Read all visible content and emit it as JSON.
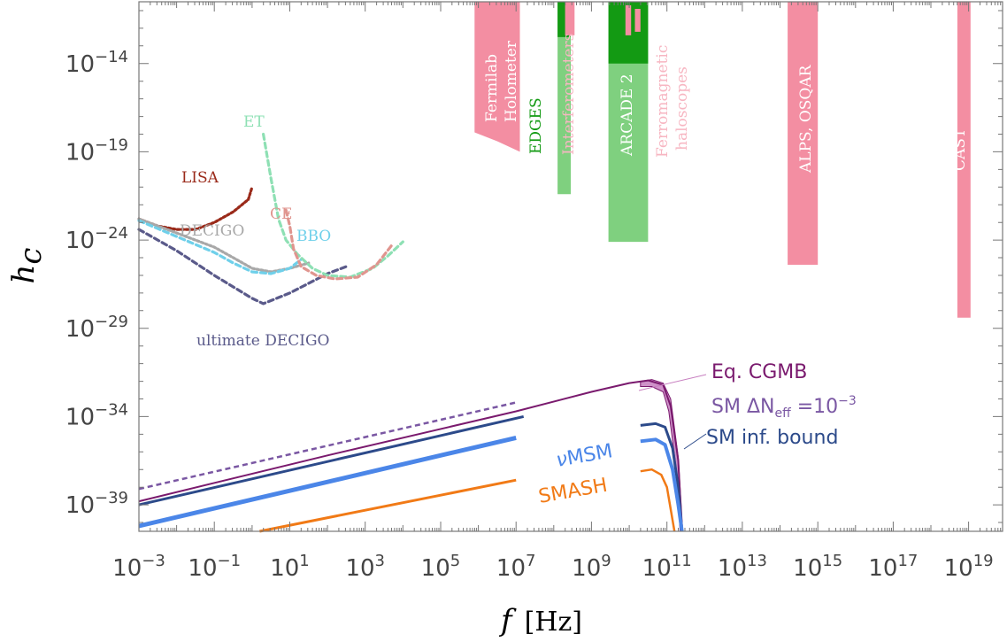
{
  "chart_data": {
    "type": "line",
    "x_scale": "log",
    "y_scale": "log",
    "xlim_exp": [
      -3,
      19.9
    ],
    "ylim_exp": [
      -40.5,
      -10.5
    ],
    "x_tick_exponents": [
      -3,
      -1,
      1,
      3,
      5,
      7,
      9,
      11,
      13,
      15,
      17,
      19
    ],
    "y_tick_exponents": [
      -14,
      -19,
      -24,
      -29,
      -34,
      -39
    ],
    "xlabel": {
      "var": "f",
      "unit": "[Hz]"
    },
    "ylabel": {
      "var": "h",
      "sub": "c"
    },
    "tick_base": "10",
    "tick_minus": "−",
    "grid": false,
    "detector_curves": [
      {
        "name": "LISA",
        "color": "#9a2a1a",
        "dash": "dotted",
        "points": [
          [
            -3,
            -22.8
          ],
          [
            -2.5,
            -23.2
          ],
          [
            -2,
            -23.4
          ],
          [
            -1.5,
            -23.4
          ],
          [
            -1,
            -23.0
          ],
          [
            -0.5,
            -22.4
          ],
          [
            -0.1,
            -21.7
          ],
          [
            0,
            -21.0
          ]
        ]
      },
      {
        "name": "DECIGO",
        "color": "#a8a8a8",
        "dash": "dotted",
        "points": [
          [
            -3,
            -22.8
          ],
          [
            -2,
            -23.6
          ],
          [
            -1,
            -24.4
          ],
          [
            -0.5,
            -25.0
          ],
          [
            0,
            -25.6
          ],
          [
            0.5,
            -25.8
          ],
          [
            1,
            -25.6
          ],
          [
            1.5,
            -25.3
          ]
        ]
      },
      {
        "name": "ultimate DECIGO",
        "color": "#5a5a8a",
        "dash": "dashed",
        "points": [
          [
            -3,
            -23.4
          ],
          [
            -2,
            -24.6
          ],
          [
            -1,
            -26.0
          ],
          [
            0,
            -27.3
          ],
          [
            0.3,
            -27.6
          ],
          [
            1,
            -27.0
          ],
          [
            2,
            -25.9
          ],
          [
            2.5,
            -25.5
          ]
        ]
      },
      {
        "name": "BBO",
        "color": "#6fd0ea",
        "dash": "dashed",
        "points": [
          [
            -3,
            -22.9
          ],
          [
            -2,
            -23.8
          ],
          [
            -1,
            -24.7
          ],
          [
            -0.5,
            -25.3
          ],
          [
            0,
            -25.8
          ],
          [
            0.5,
            -25.9
          ],
          [
            1,
            -25.6
          ],
          [
            1.3,
            -25.1
          ]
        ]
      },
      {
        "name": "ET",
        "color": "#8ee0b4",
        "dash": "dashed",
        "points": [
          [
            0.3,
            -18.0
          ],
          [
            0.5,
            -20.5
          ],
          [
            0.7,
            -22.8
          ],
          [
            0.9,
            -24.0
          ],
          [
            1.2,
            -24.8
          ],
          [
            1.6,
            -25.6
          ],
          [
            2.0,
            -26.0
          ],
          [
            2.6,
            -26.1
          ],
          [
            3.2,
            -25.6
          ],
          [
            3.6,
            -24.9
          ],
          [
            4.0,
            -24.1
          ]
        ]
      },
      {
        "name": "CE",
        "color": "#e0958f",
        "dash": "dashed",
        "points": [
          [
            0.9,
            -22.3
          ],
          [
            1.0,
            -23.2
          ],
          [
            1.1,
            -24.5
          ],
          [
            1.3,
            -25.5
          ],
          [
            1.7,
            -26.0
          ],
          [
            2.2,
            -26.2
          ],
          [
            2.8,
            -26.1
          ],
          [
            3.3,
            -25.4
          ],
          [
            3.7,
            -24.3
          ]
        ]
      }
    ],
    "signal_curves": [
      {
        "name": "SM ΔN_eff=10^-3",
        "color": "#7a57a3",
        "dash": "dashed",
        "width": 2.5,
        "points": [
          [
            -3,
            -38.1
          ],
          [
            7,
            -33.2
          ]
        ]
      },
      {
        "name": "Eq. CGMB",
        "color": "#7a1a6e",
        "dash": "solid",
        "width": 2,
        "points": [
          [
            -3,
            -38.8
          ],
          [
            2,
            -36.2
          ],
          [
            7,
            -33.7
          ],
          [
            9,
            -32.6
          ],
          [
            10,
            -32.1
          ],
          [
            10.5,
            -31.95
          ],
          [
            10.9,
            -32.2
          ],
          [
            11.1,
            -33.4
          ],
          [
            11.3,
            -36.5
          ],
          [
            11.4,
            -40.5
          ]
        ]
      },
      {
        "name": "SM inf. bound",
        "color": "#2c4a8a",
        "dash": "solid",
        "width": 3,
        "points": [
          [
            -3,
            -39.0
          ],
          [
            7.2,
            -34.0
          ]
        ]
      },
      {
        "name": "SM inf. bound peak",
        "color": "#2c4a8a",
        "dash": "solid",
        "width": 3,
        "points": [
          [
            10.3,
            -34.5
          ],
          [
            10.7,
            -34.4
          ],
          [
            10.95,
            -34.6
          ],
          [
            11.15,
            -35.8
          ],
          [
            11.3,
            -38.0
          ],
          [
            11.4,
            -40.5
          ]
        ]
      },
      {
        "name": "νMSM",
        "color": "#4b86e8",
        "dash": "solid",
        "width": 5,
        "points": [
          [
            -3,
            -40.2
          ],
          [
            7,
            -35.2
          ]
        ]
      },
      {
        "name": "νMSM peak",
        "color": "#4b86e8",
        "dash": "solid",
        "width": 4,
        "points": [
          [
            10.3,
            -35.4
          ],
          [
            10.7,
            -35.3
          ],
          [
            10.95,
            -35.6
          ],
          [
            11.15,
            -37.0
          ],
          [
            11.3,
            -39.0
          ],
          [
            11.4,
            -40.5
          ]
        ]
      },
      {
        "name": "SMASH",
        "color": "#f17a16",
        "dash": "solid",
        "width": 3,
        "points": [
          [
            0.2,
            -40.5
          ],
          [
            7,
            -37.6
          ]
        ]
      },
      {
        "name": "SMASH peak",
        "color": "#f17a16",
        "dash": "solid",
        "width": 2.5,
        "points": [
          [
            10.3,
            -37.1
          ],
          [
            10.6,
            -37.0
          ],
          [
            10.85,
            -37.3
          ],
          [
            11.0,
            -38.0
          ],
          [
            11.2,
            -40.5
          ]
        ]
      }
    ],
    "cgmb_band": {
      "color": "#c77fc0",
      "upper": [
        [
          10.3,
          -32.0
        ],
        [
          10.6,
          -31.9
        ],
        [
          10.9,
          -32.1
        ],
        [
          11.1,
          -33.0
        ],
        [
          11.3,
          -36.3
        ],
        [
          11.42,
          -40.5
        ]
      ],
      "lower": [
        [
          10.3,
          -32.3
        ],
        [
          10.6,
          -32.3
        ],
        [
          10.9,
          -32.6
        ],
        [
          11.05,
          -33.7
        ],
        [
          11.25,
          -37.0
        ],
        [
          11.35,
          -40.5
        ]
      ]
    },
    "exclusion_regions": [
      {
        "name": "Fermilab Holometer",
        "color": "#f38ea2",
        "polygon": [
          [
            6.0,
            -10.5
          ],
          [
            6.1,
            -10.5
          ],
          [
            7.0,
            -10.5
          ],
          [
            7.1,
            -10.5
          ],
          [
            7.1,
            -19.0
          ],
          [
            6.5,
            -18.4
          ],
          [
            5.9,
            -17.9
          ],
          [
            5.9,
            -10.5
          ]
        ]
      },
      {
        "name": "EDGES",
        "color": "#7fd07f",
        "polygon": [
          [
            8.1,
            -10.5
          ],
          [
            8.45,
            -10.5
          ],
          [
            8.45,
            -21.4
          ],
          [
            8.1,
            -21.4
          ]
        ]
      },
      {
        "name": "EDGES top",
        "color": "#139a13",
        "polygon": [
          [
            8.1,
            -10.5
          ],
          [
            8.45,
            -10.5
          ],
          [
            8.45,
            -12.5
          ],
          [
            8.1,
            -12.5
          ]
        ]
      },
      {
        "name": "Interferometers",
        "color": "#f38ea2",
        "polygon": [
          [
            8.3,
            -10.5
          ],
          [
            8.55,
            -10.5
          ],
          [
            8.55,
            -12.4
          ],
          [
            8.3,
            -12.4
          ]
        ]
      },
      {
        "name": "ARCADE 2",
        "color": "#7fd07f",
        "polygon": [
          [
            9.45,
            -10.5
          ],
          [
            10.5,
            -10.5
          ],
          [
            10.5,
            -24.1
          ],
          [
            9.45,
            -24.1
          ]
        ]
      },
      {
        "name": "ARCADE 2 top",
        "color": "#139a13",
        "polygon": [
          [
            9.45,
            -10.5
          ],
          [
            10.5,
            -10.5
          ],
          [
            10.5,
            -14.0
          ],
          [
            9.45,
            -14.0
          ]
        ]
      },
      {
        "name": "Ferromagnetic haloscopes a",
        "color": "#f38ea2",
        "polygon": [
          [
            9.9,
            -10.7
          ],
          [
            10.05,
            -10.7
          ],
          [
            10.05,
            -12.4
          ],
          [
            9.9,
            -12.4
          ]
        ]
      },
      {
        "name": "Ferromagnetic haloscopes b",
        "color": "#f38ea2",
        "polygon": [
          [
            10.15,
            -10.9
          ],
          [
            10.3,
            -10.9
          ],
          [
            10.3,
            -12.2
          ],
          [
            10.15,
            -12.2
          ]
        ]
      },
      {
        "name": "ALPS, OSQAR",
        "color": "#f38ea2",
        "polygon": [
          [
            14.2,
            -10.5
          ],
          [
            15.0,
            -10.5
          ],
          [
            15.0,
            -25.4
          ],
          [
            14.2,
            -25.4
          ]
        ]
      },
      {
        "name": "CAST",
        "color": "#f38ea2",
        "polygon": [
          [
            18.7,
            -10.5
          ],
          [
            19.05,
            -10.5
          ],
          [
            19.05,
            -28.4
          ],
          [
            18.7,
            -28.4
          ]
        ]
      }
    ],
    "annotations": {
      "LISA": "LISA",
      "ET": "ET",
      "CE": "CE",
      "DECIGO": "DECIGO",
      "BBO": "BBO",
      "ultimate_DECIGO": "ultimate DECIGO",
      "fermilab_1": "Fermilab",
      "fermilab_2": "Holometer",
      "edges": "EDGES",
      "interferometers": "Interferometers",
      "arcade": "ARCADE 2",
      "ferro_1": "Ferromagnetic",
      "ferro_2": "haloscopes",
      "alps": "ALPS, OSQAR",
      "cast": "CAST",
      "eq_cgmb": "Eq. CGMB",
      "sm_neff_prefix": "SM ΔN",
      "sm_neff_sub": "eff",
      "sm_neff_suffix": " =10",
      "sm_neff_exp": "−3",
      "sm_inf": "SM inf. bound",
      "numsm_nu": "ν",
      "numsm_rest": "MSM",
      "smash": "SMASH"
    },
    "colors": {
      "lisa": "#9a2a1a",
      "et": "#8ee0b4",
      "ce": "#e0958f",
      "decigo": "#a8a8a8",
      "bbo": "#6fd0ea",
      "ultimate_decigo": "#5a5a8a",
      "edges": "#139a13",
      "pink_text": "#f7b6c2",
      "eq_cgmb": "#7a1a6e",
      "sm_neff": "#7a57a3",
      "sm_inf": "#2c4a8a",
      "numsm": "#4b86e8",
      "smash": "#f17a16"
    }
  }
}
